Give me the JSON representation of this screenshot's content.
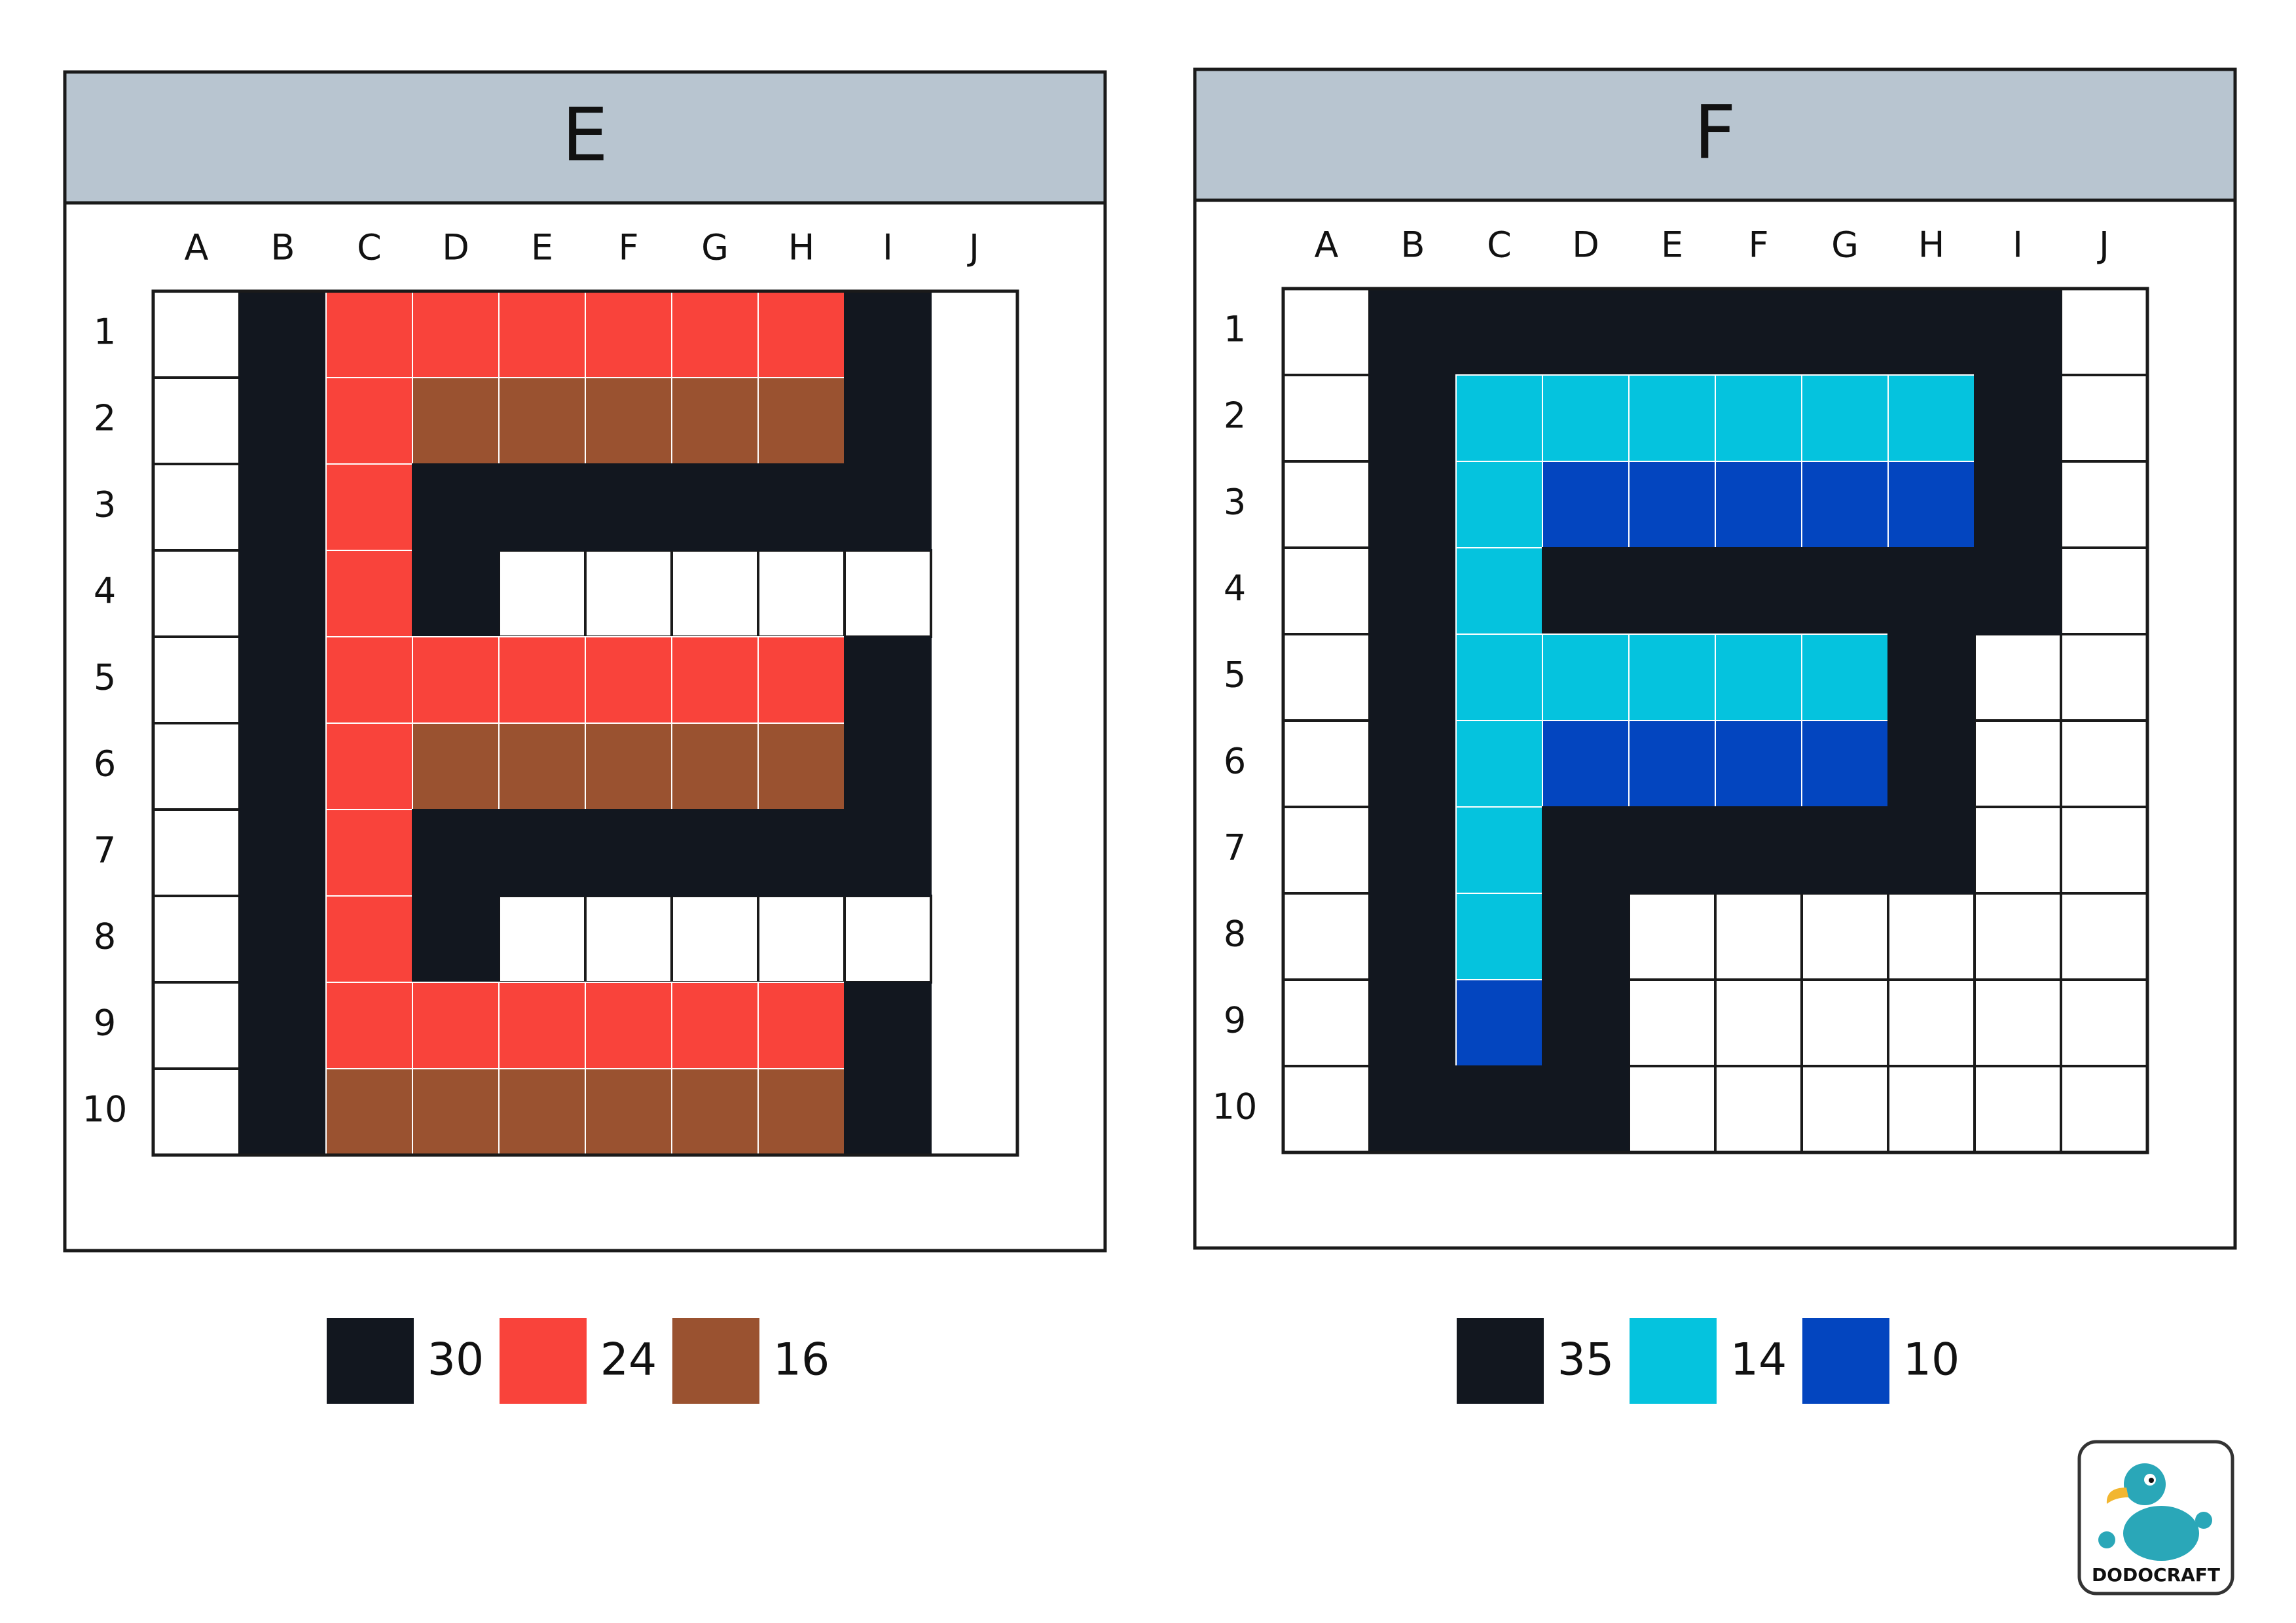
{
  "panels": [
    {
      "title": "E",
      "columns": [
        "A",
        "B",
        "C",
        "D",
        "E",
        "F",
        "G",
        "H",
        "I",
        "J"
      ],
      "rows": [
        "1",
        "2",
        "3",
        "4",
        "5",
        "6",
        "7",
        "8",
        "9",
        "10"
      ],
      "legend": [
        {
          "color": "#12171f",
          "count": 30
        },
        {
          "color": "#f9433b",
          "count": 24
        },
        {
          "color": "#9a5230",
          "count": 16
        }
      ]
    },
    {
      "title": "F",
      "columns": [
        "A",
        "B",
        "C",
        "D",
        "E",
        "F",
        "G",
        "H",
        "I",
        "J"
      ],
      "rows": [
        "1",
        "2",
        "3",
        "4",
        "5",
        "6",
        "7",
        "8",
        "9",
        "10"
      ],
      "legend": [
        {
          "color": "#12171f",
          "count": 35
        },
        {
          "color": "#05c3de",
          "count": 14
        },
        {
          "color": "#0345bf",
          "count": 10
        }
      ]
    }
  ],
  "logo": {
    "text": "DODOCRAFT"
  }
}
